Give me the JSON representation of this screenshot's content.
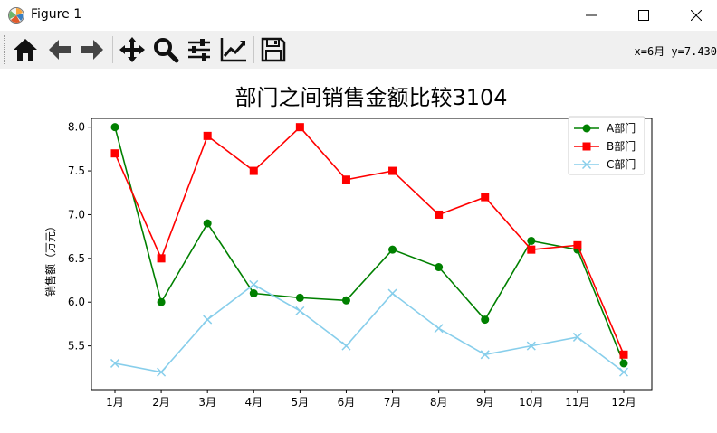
{
  "window": {
    "title": "Figure 1"
  },
  "toolbar": {
    "buttons": [
      {
        "name": "home-icon"
      },
      {
        "name": "back-arrow-icon"
      },
      {
        "name": "forward-arrow-icon"
      },
      {
        "name": "pan-icon"
      },
      {
        "name": "zoom-icon"
      },
      {
        "name": "subplots-config-icon"
      },
      {
        "name": "edit-axis-icon"
      },
      {
        "name": "save-icon"
      }
    ],
    "coords_text": "x=6月 y=7.430"
  },
  "chart_data": {
    "type": "line",
    "title": "部门之间销售金额比较3104",
    "xlabel": "",
    "ylabel": "销售额（万元）",
    "categories": [
      "1月",
      "2月",
      "3月",
      "4月",
      "5月",
      "6月",
      "7月",
      "8月",
      "9月",
      "10月",
      "11月",
      "12月"
    ],
    "ylim": [
      5.0,
      8.1
    ],
    "yticks": [
      "5.5",
      "6.0",
      "6.5",
      "7.0",
      "7.5",
      "8.0"
    ],
    "legend_position": "top-right",
    "grid": false,
    "series": [
      {
        "name": "A部门",
        "color": "#008000",
        "marker": "circle",
        "values": [
          8.0,
          6.0,
          6.9,
          6.1,
          6.05,
          6.02,
          6.6,
          6.4,
          5.8,
          6.7,
          6.6,
          5.3
        ]
      },
      {
        "name": "B部门",
        "color": "#ff0000",
        "marker": "square",
        "values": [
          7.7,
          6.5,
          7.9,
          7.5,
          8.0,
          7.4,
          7.5,
          7.0,
          7.2,
          6.6,
          6.65,
          5.4
        ]
      },
      {
        "name": "C部门",
        "color": "#87ceeb",
        "marker": "x",
        "values": [
          5.3,
          5.2,
          5.8,
          6.2,
          5.9,
          5.5,
          6.1,
          5.7,
          5.4,
          5.5,
          5.6,
          5.2
        ]
      }
    ]
  }
}
